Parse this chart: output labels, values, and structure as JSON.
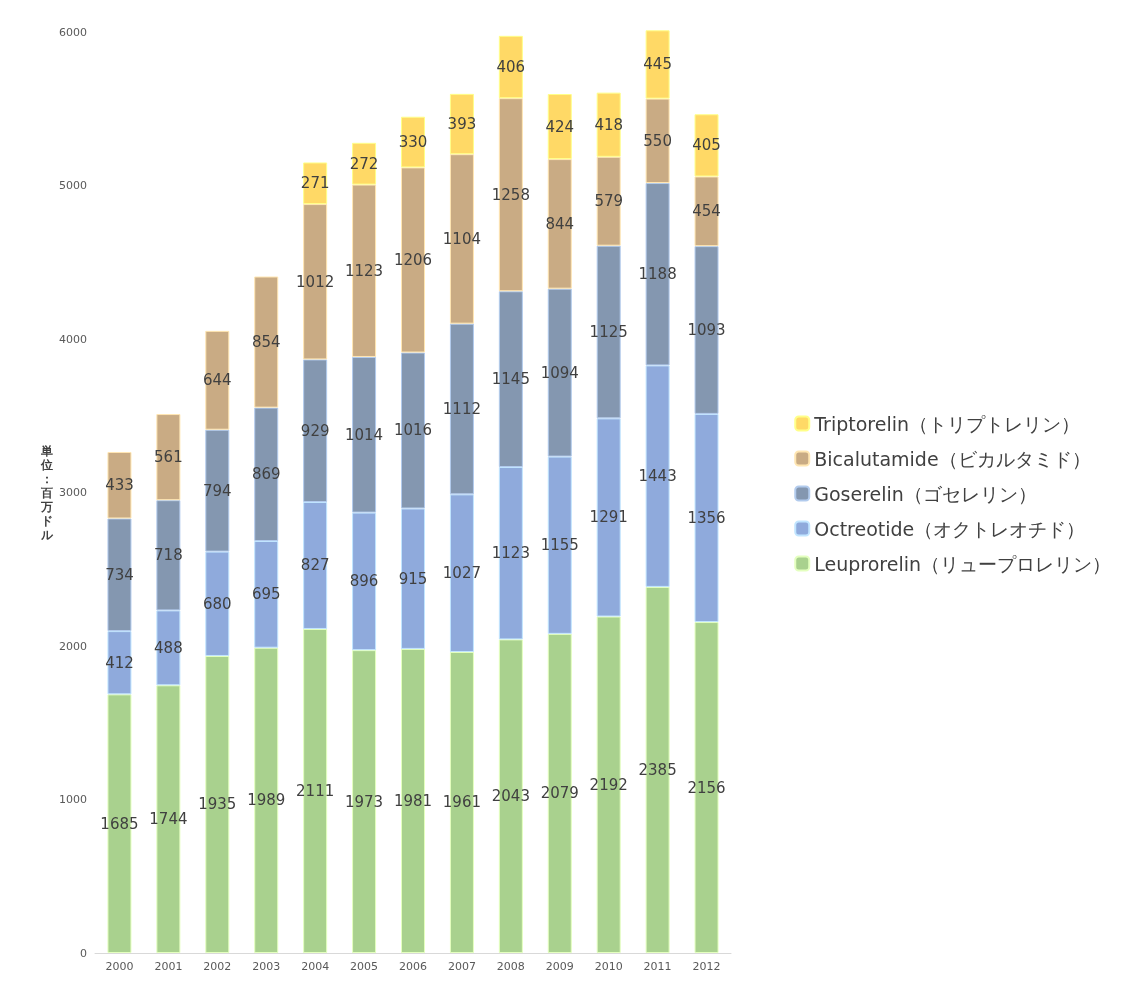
{
  "chart_data": {
    "type": "bar",
    "stacked": true,
    "ylabel": "単位：百万ドル",
    "categories": [
      "2000",
      "2001",
      "2002",
      "2003",
      "2004",
      "2005",
      "2006",
      "2007",
      "2008",
      "2009",
      "2010",
      "2011",
      "2012"
    ],
    "series": [
      {
        "name": "Leuprorelin（リュープロレリン）",
        "color": "#a9d18e",
        "values": [
          1685,
          1744,
          1935,
          1989,
          2111,
          1973,
          1981,
          1961,
          2043,
          2079,
          2192,
          2385,
          2156
        ]
      },
      {
        "name": "Octreotide（オクトレオチド）",
        "color": "#8faadc",
        "values": [
          412,
          488,
          680,
          695,
          827,
          896,
          915,
          1027,
          1123,
          1155,
          1291,
          1443,
          1356
        ]
      },
      {
        "name": "Goserelin（ゴセレリン）",
        "color": "#8497b0",
        "values": [
          734,
          718,
          794,
          869,
          929,
          1014,
          1016,
          1112,
          1145,
          1094,
          1125,
          1188,
          1093
        ]
      },
      {
        "name": "Bicalutamide（ビカルタミド）",
        "color": "#c9ab84",
        "values": [
          433,
          561,
          644,
          854,
          1012,
          1123,
          1206,
          1104,
          1258,
          844,
          579,
          550,
          454
        ]
      },
      {
        "name": "Triptorelin（トリプトレリン）",
        "color": "#ffd966",
        "values": [
          null,
          null,
          null,
          null,
          271,
          272,
          330,
          393,
          406,
          424,
          418,
          445,
          405
        ]
      }
    ],
    "ylim": [
      0,
      6000
    ],
    "yticks": [
      0,
      1000,
      2000,
      3000,
      4000,
      5000,
      6000
    ],
    "grid": false,
    "legend": "right",
    "data_labels": true
  }
}
